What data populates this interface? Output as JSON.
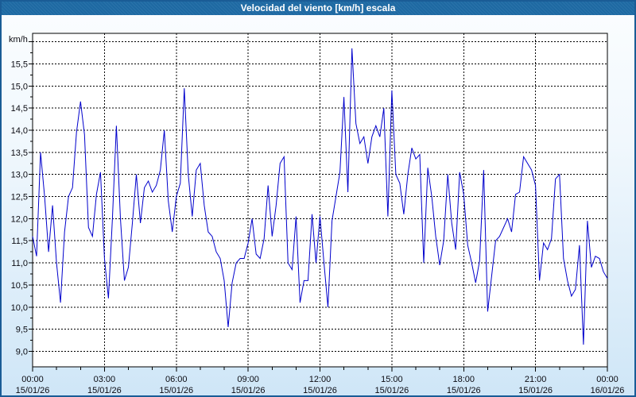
{
  "window": {
    "title": "Velocidad del viento [km/h] escala"
  },
  "chart_data": {
    "type": "line",
    "title": "Velocidad del viento [km/h] escala",
    "ylabel": "km/h",
    "xlabel": "",
    "grid": true,
    "legend": "none",
    "line_color": "#0000cc",
    "plot_background": "#ffffff",
    "y_tick_labels": [
      "15,5",
      "15,0",
      "14,5",
      "14,0",
      "13,5",
      "13,0",
      "12,5",
      "12,0",
      "11,5",
      "11,0",
      "10,5",
      "10,0",
      "9,5",
      "9,0"
    ],
    "y_gridline_values": [
      16.0,
      15.5,
      15.0,
      14.5,
      14.0,
      13.5,
      13.0,
      12.5,
      12.0,
      11.5,
      11.0,
      10.5,
      10.0,
      9.5,
      9.0
    ],
    "ylim_drawn": [
      8.65,
      16.19
    ],
    "x_ticks": [
      {
        "time": "00:00",
        "date": "15/01/26"
      },
      {
        "time": "03:00",
        "date": "15/01/26"
      },
      {
        "time": "06:00",
        "date": "15/01/26"
      },
      {
        "time": "09:00",
        "date": "15/01/26"
      },
      {
        "time": "12:00",
        "date": "15/01/26"
      },
      {
        "time": "15:00",
        "date": "15/01/26"
      },
      {
        "time": "18:00",
        "date": "15/01/26"
      },
      {
        "time": "21:00",
        "date": "15/01/26"
      },
      {
        "time": "00:00",
        "date": "16/01/26"
      }
    ],
    "x_range_hours": 24,
    "interval_minutes": 10,
    "values": [
      11.6,
      11.15,
      13.5,
      12.5,
      11.25,
      12.3,
      11.0,
      10.1,
      11.7,
      12.5,
      12.7,
      13.95,
      14.65,
      13.9,
      11.8,
      11.6,
      12.55,
      13.05,
      11.1,
      10.2,
      12.0,
      14.1,
      12.0,
      10.6,
      10.9,
      11.9,
      13.0,
      11.9,
      12.7,
      12.85,
      12.6,
      12.75,
      13.1,
      14.0,
      12.4,
      11.7,
      12.5,
      12.8,
      14.95,
      13.0,
      12.05,
      13.1,
      13.25,
      12.3,
      11.7,
      11.6,
      11.25,
      11.1,
      10.6,
      9.55,
      10.55,
      11.0,
      11.1,
      11.1,
      11.45,
      12.0,
      11.2,
      11.1,
      11.55,
      12.75,
      11.6,
      12.3,
      13.25,
      13.4,
      11.0,
      10.85,
      12.05,
      10.1,
      10.6,
      10.6,
      12.1,
      11.0,
      12.05,
      11.0,
      10.0,
      11.95,
      12.5,
      13.05,
      14.75,
      12.6,
      15.85,
      14.15,
      13.7,
      13.85,
      13.25,
      13.85,
      14.1,
      13.85,
      14.5,
      12.05,
      14.9,
      13.0,
      12.8,
      12.1,
      13.0,
      13.6,
      13.35,
      13.45,
      11.0,
      13.15,
      12.5,
      11.6,
      10.95,
      11.5,
      13.0,
      11.9,
      11.3,
      13.05,
      12.55,
      11.4,
      11.0,
      10.55,
      11.05,
      13.1,
      9.9,
      10.7,
      11.5,
      11.6,
      11.8,
      12.0,
      11.7,
      12.55,
      12.6,
      13.4,
      13.25,
      13.1,
      12.75,
      10.6,
      11.45,
      11.3,
      11.55,
      12.9,
      13.0,
      11.1,
      10.6,
      10.25,
      10.4,
      11.4,
      9.15,
      11.95,
      10.9,
      11.15,
      11.1,
      10.8,
      10.65
    ]
  },
  "colors": {
    "titlebar": "#1f6ba5",
    "frame_border": "#1a5c96",
    "axis": "#000000",
    "grid": "#000000",
    "label_text": "#0b0b12",
    "series_line": "#0000cc"
  }
}
